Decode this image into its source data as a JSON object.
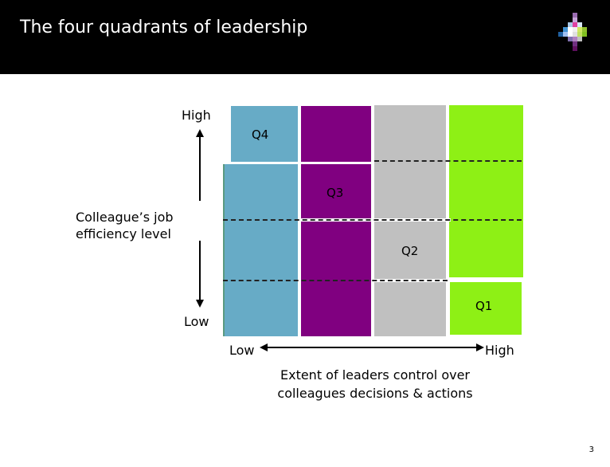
{
  "slide": {
    "title": "The four quadrants of leadership",
    "page_number": "3"
  },
  "diagram": {
    "y_axis": {
      "high": "High",
      "low": "Low",
      "label_line1": "Colleague’s job",
      "label_line2": "efficiency level"
    },
    "x_axis": {
      "low": "Low",
      "high": "High",
      "label_line1": "Extent of leaders control over",
      "label_line2": "colleagues decisions & actions"
    },
    "quadrants": [
      "Q4",
      "Q3",
      "Q2",
      "Q1"
    ],
    "colors": {
      "blue": "#67abc6",
      "purple": "#800080",
      "grey": "#c0c0c0",
      "green": "#8ef015"
    }
  }
}
